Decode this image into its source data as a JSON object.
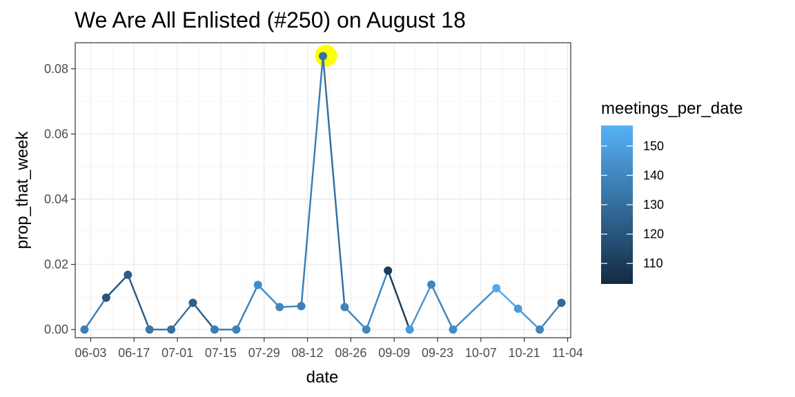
{
  "chart_data": {
    "type": "line",
    "title": "We Are All Enlisted (#250) on August 18",
    "xlabel": "date",
    "ylabel": "prop_that_week",
    "ylim": [
      -0.0025,
      0.088
    ],
    "yticks": [
      0.0,
      0.02,
      0.04,
      0.06,
      0.08
    ],
    "ytick_labels": [
      "0.00",
      "0.02",
      "0.04",
      "0.06",
      "0.08"
    ],
    "xticks": [
      "2018-06-03",
      "2018-06-17",
      "2018-07-01",
      "2018-07-15",
      "2018-07-29",
      "2018-08-12",
      "2018-08-26",
      "2018-09-09",
      "2018-09-23",
      "2018-10-07",
      "2018-10-21",
      "2018-11-04"
    ],
    "xtick_labels": [
      "06-03",
      "06-17",
      "07-01",
      "07-15",
      "07-29",
      "08-12",
      "08-26",
      "09-09",
      "09-23",
      "10-07",
      "10-21",
      "11-04"
    ],
    "xlim": [
      "2018-05-29",
      "2018-11-05"
    ],
    "grid": true,
    "highlight": {
      "date": "2018-08-18",
      "value": 0.084,
      "color": "#ffff00"
    },
    "points": [
      {
        "date": "2018-06-01",
        "value": 0.0,
        "meetings": 137
      },
      {
        "date": "2018-06-08",
        "value": 0.0098,
        "meetings": 120
      },
      {
        "date": "2018-06-15",
        "value": 0.0168,
        "meetings": 123
      },
      {
        "date": "2018-06-22",
        "value": 0.0,
        "meetings": 134
      },
      {
        "date": "2018-06-29",
        "value": 0.0,
        "meetings": 131
      },
      {
        "date": "2018-07-06",
        "value": 0.0082,
        "meetings": 124
      },
      {
        "date": "2018-07-13",
        "value": 0.0,
        "meetings": 136
      },
      {
        "date": "2018-07-20",
        "value": 0.0,
        "meetings": 138
      },
      {
        "date": "2018-07-27",
        "value": 0.0137,
        "meetings": 142
      },
      {
        "date": "2018-08-03",
        "value": 0.0069,
        "meetings": 140
      },
      {
        "date": "2018-08-10",
        "value": 0.0072,
        "meetings": 137
      },
      {
        "date": "2018-08-17",
        "value": 0.0839,
        "meetings": 131
      },
      {
        "date": "2018-08-24",
        "value": 0.0069,
        "meetings": 139
      },
      {
        "date": "2018-08-31",
        "value": 0.0,
        "meetings": 140
      },
      {
        "date": "2018-09-07",
        "value": 0.0181,
        "meetings": 110
      },
      {
        "date": "2018-09-14",
        "value": 0.0,
        "meetings": 147
      },
      {
        "date": "2018-09-21",
        "value": 0.0138,
        "meetings": 140
      },
      {
        "date": "2018-09-28",
        "value": 0.0,
        "meetings": 142
      },
      {
        "date": "2018-10-12",
        "value": 0.0127,
        "meetings": 154
      },
      {
        "date": "2018-10-19",
        "value": 0.0064,
        "meetings": 148
      },
      {
        "date": "2018-10-26",
        "value": 0.0,
        "meetings": 140
      },
      {
        "date": "2018-11-02",
        "value": 0.0082,
        "meetings": 128
      }
    ],
    "legend": {
      "title": "meetings_per_date",
      "position": "right",
      "range": [
        103,
        157
      ],
      "ticks": [
        110,
        120,
        130,
        140,
        150
      ],
      "low_color": "#132B43",
      "high_color": "#56B1F7"
    },
    "colors": {
      "panel_border": "#333333",
      "grid_major": "#ebebeb",
      "grid_minor": "#f5f5f5",
      "tick": "#333333"
    }
  }
}
